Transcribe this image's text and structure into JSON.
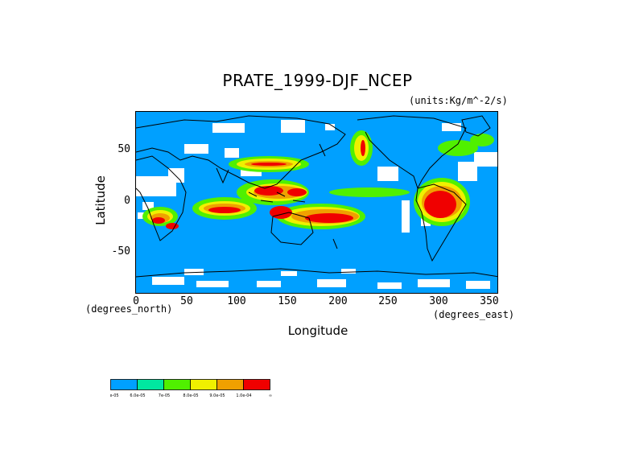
{
  "title": "PRATE_1999-DJF_NCEP",
  "units": "(units:Kg/m^-2/s)",
  "axes": {
    "ylabel": "Latitude",
    "xlabel": "Longitude",
    "y_note": "(degrees_north)",
    "x_note": "(degrees_east)",
    "y_ticks": [
      "50",
      "0",
      "-50"
    ],
    "x_ticks": [
      "0",
      "50",
      "100",
      "150",
      "200",
      "250",
      "300",
      "350"
    ]
  },
  "chart_data": {
    "type": "heatmap",
    "title": "PRATE_1999-DJF_NCEP",
    "xlabel": "Longitude",
    "ylabel": "Latitude",
    "xlim": [
      0,
      360
    ],
    "ylim": [
      -90,
      90
    ],
    "x_ticks": [
      0,
      50,
      100,
      150,
      200,
      250,
      300,
      350
    ],
    "y_ticks": [
      -50,
      0,
      50
    ],
    "colorbar": {
      "labels": [
        "5.0e-05",
        "6.0e-05",
        "7e-05",
        "8.0e-05",
        "9.0e-05",
        "1.0e-04",
        "∞"
      ],
      "colors": [
        "#00a0ff",
        "#00e8a0",
        "#50f000",
        "#f0f000",
        "#f0a000",
        "#f00000"
      ]
    }
  },
  "colors": {
    "background_field": "#00a0ff",
    "no_data": "#ffffff",
    "coastline": "#000000"
  }
}
